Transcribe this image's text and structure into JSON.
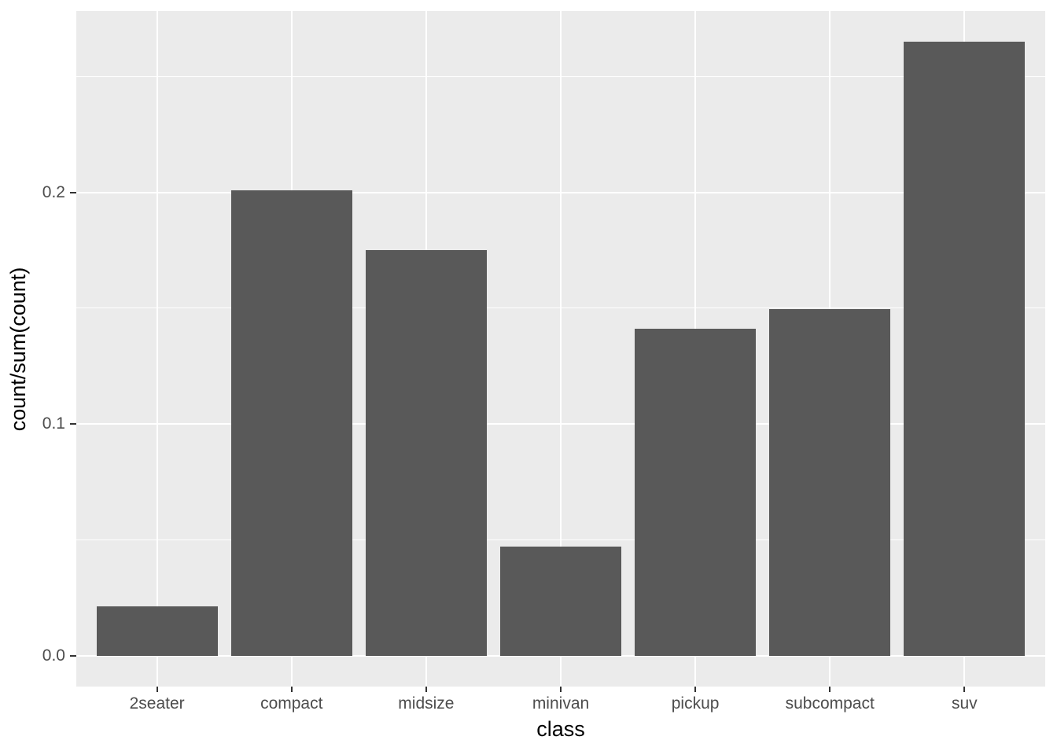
{
  "figure": {
    "background_color": "#FFFFFF",
    "panel_background_color": "#EBEBEB",
    "gridline_color": "#FFFFFF",
    "bar_color": "#595959",
    "axis_text_color": "#4D4D4D",
    "tick_mark_color": "#333333",
    "axis_title_color": "#000000"
  },
  "chart_data": {
    "type": "bar",
    "title": "",
    "xlabel": "class",
    "ylabel": "count/sum(count)",
    "categories": [
      "2seater",
      "compact",
      "midsize",
      "minivan",
      "pickup",
      "subcompact",
      "suv"
    ],
    "values": [
      0.0214,
      0.2009,
      0.1752,
      0.047,
      0.141,
      0.1496,
      0.265
    ],
    "series": [
      {
        "name": "count/sum(count)",
        "values": [
          0.0214,
          0.2009,
          0.1752,
          0.047,
          0.141,
          0.1496,
          0.265
        ]
      }
    ],
    "y_axis": {
      "major_ticks": [
        0.0,
        0.1,
        0.2
      ],
      "major_tick_labels": [
        "0.0",
        "0.1",
        "0.2"
      ],
      "minor_gridlines": [
        0.05,
        0.15,
        0.25
      ],
      "range": [
        -0.01325,
        0.27825
      ]
    },
    "x_axis": {
      "tick_labels": [
        "2seater",
        "compact",
        "midsize",
        "minivan",
        "pickup",
        "subcompact",
        "suv"
      ]
    },
    "grid": true,
    "legend": false,
    "bar_width_fraction": 0.9,
    "bar_orientation": "vertical"
  }
}
